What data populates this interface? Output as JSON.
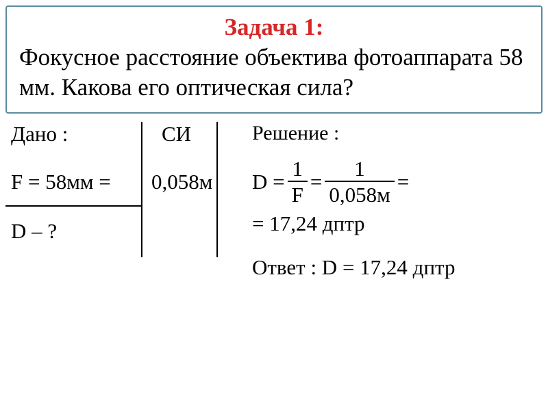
{
  "problem": {
    "title": "Задача 1:",
    "text": "Фокусное расстояние объектива фотоаппарата 58 мм. Какова его оптическая сила?"
  },
  "given": {
    "label": "Дано :",
    "si_label": "СИ",
    "f_expr": "F = 58мм =",
    "f_si": "0,058м",
    "find": "D – ?"
  },
  "solution": {
    "label": "Решение :",
    "d_eq": "D =",
    "frac1_num": "1",
    "frac1_den": "F",
    "eq2": "=",
    "frac2_num": "1",
    "frac2_den": "0,058м",
    "eq3": "=",
    "result": "= 17,24 дптр",
    "answer": "Ответ : D = 17,24 дптр"
  },
  "style": {
    "title_color": "#d62828",
    "border_color": "#5b8a9e",
    "text_color": "#000000",
    "background": "#ffffff",
    "title_fontsize": 35,
    "body_fontsize": 35,
    "solution_fontsize": 31
  }
}
